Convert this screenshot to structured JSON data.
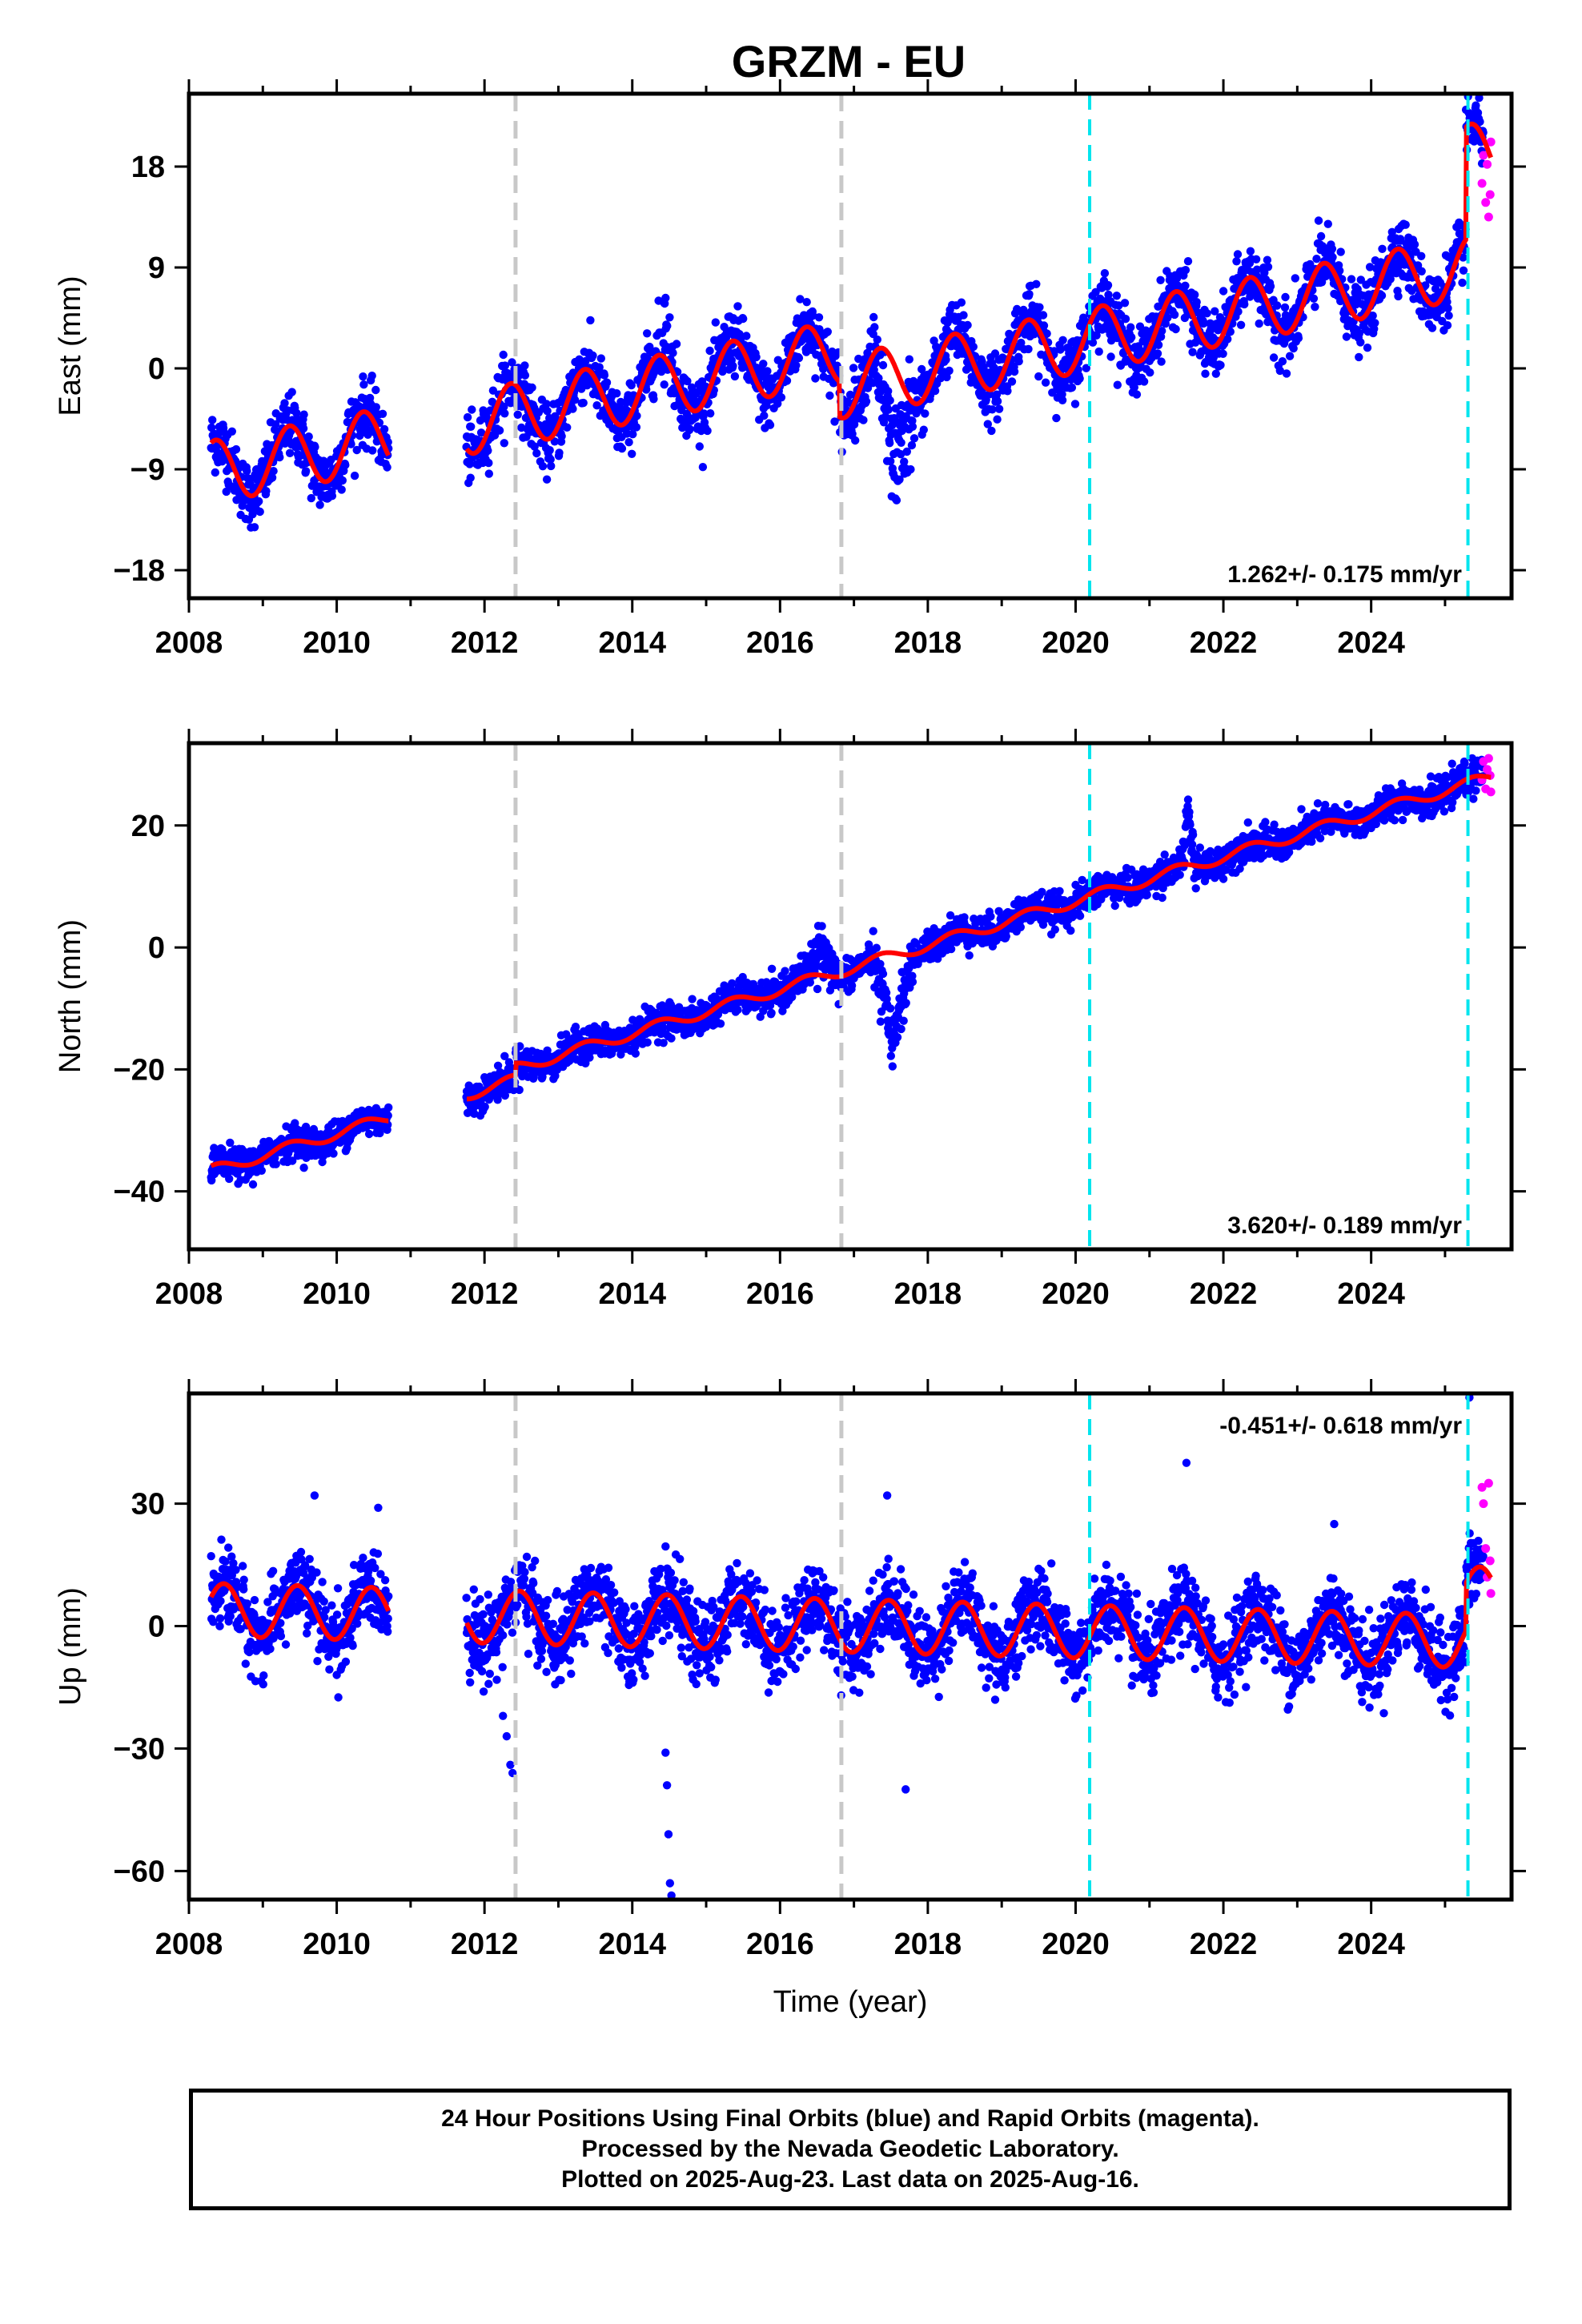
{
  "title": "GRZM - EU",
  "colors": {
    "final_orbits": "#0000ff",
    "rapid_orbits": "#ff00ff",
    "model": "#ff0000",
    "equipment_change": "#c8c8c8",
    "event": "#00e5ee"
  },
  "chart_data": [
    {
      "type": "scatter",
      "component": "East",
      "ylabel": "East (mm)",
      "xlabel": "",
      "xlim": [
        2008.0,
        2025.9
      ],
      "ylim": [
        -20.5,
        24.5
      ],
      "x_ticks": [
        "2008",
        "2010",
        "2012",
        "2014",
        "2016",
        "2018",
        "2020",
        "2022",
        "2024"
      ],
      "y_ticks": [
        "18",
        "9",
        "0",
        "-9",
        "-18"
      ],
      "y_tick_values": [
        18,
        9,
        0,
        -9,
        -18
      ],
      "rate": "1.262+/- 0.175 mm/yr",
      "rate_value": 1.262,
      "seasonal_amplitude": 2.8,
      "seasonal_phase": 5.6,
      "noise": 1.4,
      "segments": [
        {
          "start": 2008.3,
          "end": 2016.8,
          "intercept": -4.6,
          "slope": 1.262,
          "ref": 2012.0
        },
        {
          "start": 2016.8,
          "end": 2025.28,
          "intercept": 3.6,
          "slope": 1.262,
          "ref": 2021.0
        },
        {
          "start": 2025.28,
          "end": 2025.62,
          "intercept": 19.0,
          "slope": 0.0,
          "ref": 2025.4
        }
      ],
      "gaps": [
        [
          2010.7,
          2011.75
        ]
      ],
      "transients": [
        {
          "start": 2017.25,
          "end": 2017.8,
          "offset": -9.5,
          "range": [
            -20,
            -4
          ]
        },
        {
          "start": 2014.35,
          "end": 2014.55,
          "offset": 3.0,
          "range": [
            -6,
            10
          ]
        }
      ],
      "rapid_points": [
        [
          2025.5,
          16.5
        ],
        [
          2025.52,
          19.0
        ],
        [
          2025.55,
          14.8
        ],
        [
          2025.57,
          18.2
        ],
        [
          2025.59,
          13.5
        ],
        [
          2025.61,
          15.5
        ],
        [
          2025.62,
          20.2
        ]
      ],
      "equipment_changes": [
        2012.42,
        2016.83
      ],
      "events": [
        2020.19,
        2025.31
      ]
    },
    {
      "type": "scatter",
      "component": "North",
      "ylabel": "North (mm)",
      "xlabel": "",
      "xlim": [
        2008.0,
        2025.9
      ],
      "ylim": [
        -49.5,
        33.5
      ],
      "x_ticks": [
        "2008",
        "2010",
        "2012",
        "2014",
        "2016",
        "2018",
        "2020",
        "2022",
        "2024"
      ],
      "y_ticks": [
        "20",
        "0",
        "-20",
        "-40"
      ],
      "y_tick_values": [
        20,
        0,
        -20,
        -40
      ],
      "rate": "3.620+/- 0.189 mm/yr",
      "rate_value": 3.62,
      "seasonal_amplitude": 0.9,
      "seasonal_phase": 5.6,
      "noise": 1.3,
      "segments": [
        {
          "start": 2008.3,
          "end": 2012.42,
          "intercept": -30.5,
          "slope": 3.62,
          "ref": 2010.0
        },
        {
          "start": 2012.42,
          "end": 2025.62,
          "intercept": 4.0,
          "slope": 3.62,
          "ref": 2019.0
        }
      ],
      "gaps": [
        [
          2010.7,
          2011.75
        ]
      ],
      "transients": [
        {
          "start": 2017.25,
          "end": 2017.8,
          "offset": -14.0,
          "range": [
            -24,
            -6
          ]
        },
        {
          "start": 2021.45,
          "end": 2021.6,
          "offset": 9.0,
          "range": [
            20,
            30
          ]
        },
        {
          "start": 2016.3,
          "end": 2016.8,
          "offset": 4.0,
          "range": [
            -2,
            6
          ]
        }
      ],
      "rapid_points": [
        [
          2025.5,
          27.5
        ],
        [
          2025.52,
          30.5
        ],
        [
          2025.55,
          26.0
        ],
        [
          2025.57,
          29.2
        ],
        [
          2025.59,
          31.0
        ],
        [
          2025.61,
          28.2
        ],
        [
          2025.62,
          25.5
        ]
      ],
      "equipment_changes": [
        2012.42,
        2016.83
      ],
      "events": [
        2020.19,
        2025.31
      ]
    },
    {
      "type": "scatter",
      "component": "Up",
      "ylabel": "Up (mm)",
      "xlabel": "Time (year)",
      "xlim": [
        2008.0,
        2025.9
      ],
      "ylim": [
        -67.0,
        57.0
      ],
      "x_ticks": [
        "2008",
        "2010",
        "2012",
        "2014",
        "2016",
        "2018",
        "2020",
        "2022",
        "2024"
      ],
      "y_ticks": [
        "30",
        "0",
        "-30",
        "-60"
      ],
      "y_tick_values": [
        30,
        0,
        -30,
        -60
      ],
      "rate": "-0.451+/- 0.618 mm/yr",
      "rate_value": -0.451,
      "seasonal_amplitude": 6.5,
      "seasonal_phase": 4.9,
      "noise": 4.8,
      "segments": [
        {
          "start": 2008.3,
          "end": 2025.28,
          "intercept": 0.5,
          "slope": -0.451,
          "ref": 2016.0
        },
        {
          "start": 2025.28,
          "end": 2025.62,
          "intercept": 8.0,
          "slope": 0.0,
          "ref": 2025.4
        }
      ],
      "gaps": [
        [
          2010.7,
          2011.75
        ]
      ],
      "transients": [],
      "outliers": [
        [
          2012.25,
          -22.0
        ],
        [
          2012.3,
          -27.0
        ],
        [
          2012.35,
          -34.0
        ],
        [
          2012.38,
          -36.0
        ],
        [
          2014.45,
          -31.0
        ],
        [
          2014.47,
          -39.0
        ],
        [
          2014.49,
          -51.0
        ],
        [
          2014.51,
          -63.0
        ],
        [
          2014.53,
          -66.0
        ],
        [
          2017.45,
          32.0
        ],
        [
          2017.7,
          -40.0
        ],
        [
          2009.7,
          32.0
        ],
        [
          2021.5,
          40.0
        ],
        [
          2025.33,
          56.0
        ],
        [
          2023.5,
          25.0
        ]
      ],
      "rapid_points": [
        [
          2025.5,
          34.0
        ],
        [
          2025.52,
          30.0
        ],
        [
          2025.55,
          19.0
        ],
        [
          2025.57,
          12.0
        ],
        [
          2025.59,
          35.0
        ],
        [
          2025.61,
          16.0
        ],
        [
          2025.62,
          8.0
        ]
      ],
      "equipment_changes": [
        2012.42,
        2016.83
      ],
      "events": [
        2020.19,
        2025.31
      ]
    }
  ],
  "caption": {
    "line1": "24 Hour Positions Using Final Orbits (blue) and Rapid Orbits (magenta).",
    "line2": "Processed by the Nevada Geodetic Laboratory.",
    "line3": "Plotted on 2025-Aug-23. Last data on 2025-Aug-16."
  }
}
